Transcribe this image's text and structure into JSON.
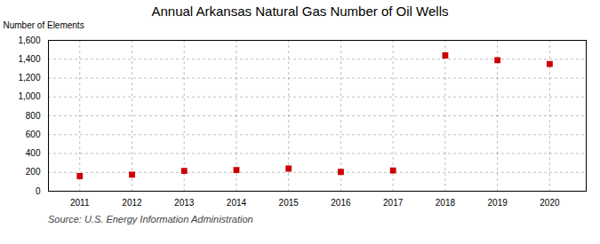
{
  "chart_data": {
    "type": "scatter",
    "title": "Annual Arkansas Natural Gas Number of Oil Wells",
    "ylabel": "Number of Elements",
    "source": "Source: U.S. Energy Information Administration",
    "x": [
      2011,
      2012,
      2013,
      2014,
      2015,
      2016,
      2017,
      2018,
      2019,
      2020
    ],
    "values": [
      160,
      175,
      215,
      225,
      240,
      205,
      220,
      1440,
      1390,
      1350
    ],
    "color": "#cc0000",
    "marker": "square",
    "xlim": [
      2010.4,
      2020.7
    ],
    "xticks": [
      2011,
      2012,
      2013,
      2014,
      2015,
      2016,
      2017,
      2018,
      2019,
      2020
    ],
    "ylim": [
      0,
      1600
    ],
    "yticks": [
      0,
      200,
      400,
      600,
      800,
      {
        "value": 1000,
        "label": "1,000"
      },
      {
        "value": 1200,
        "label": "1,200"
      },
      {
        "value": 1400,
        "label": "1,400"
      },
      {
        "value": 1600,
        "label": "1,600"
      }
    ],
    "grid": true
  }
}
